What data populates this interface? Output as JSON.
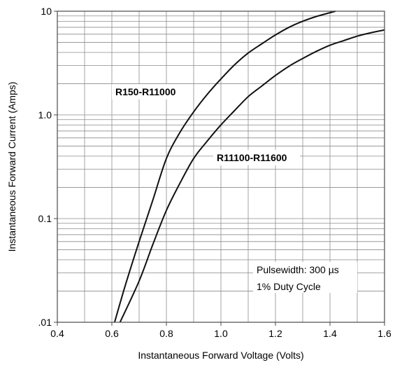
{
  "chart_data": {
    "type": "line",
    "xlabel": "Instantaneous Forward Voltage (Volts)",
    "ylabel": "Instantaneous Forward Current (Amps)",
    "xlim": [
      0.4,
      1.6
    ],
    "ylim": [
      0.01,
      10
    ],
    "yscale": "log",
    "grid": true,
    "x_ticks": [
      {
        "value": 0.4,
        "label": "0.4"
      },
      {
        "value": 0.6,
        "label": "0.6"
      },
      {
        "value": 0.8,
        "label": "0.8"
      },
      {
        "value": 1.0,
        "label": "1.0"
      },
      {
        "value": 1.2,
        "label": "1.2"
      },
      {
        "value": 1.4,
        "label": "1.4"
      },
      {
        "value": 1.6,
        "label": "1.6"
      }
    ],
    "y_ticks": [
      {
        "value": 0.01,
        "label": ".01"
      },
      {
        "value": 0.1,
        "label": "0.1"
      },
      {
        "value": 1.0,
        "label": "1.0"
      },
      {
        "value": 10,
        "label": "10"
      }
    ],
    "series": [
      {
        "name": "R150-R11000",
        "x": [
          0.61,
          0.65,
          0.7,
          0.75,
          0.8,
          0.85,
          0.9,
          0.95,
          1.0,
          1.05,
          1.1,
          1.15,
          1.2,
          1.25,
          1.3,
          1.35,
          1.42
        ],
        "y": [
          0.01,
          0.023,
          0.06,
          0.15,
          0.38,
          0.68,
          1.07,
          1.58,
          2.22,
          3.04,
          3.95,
          4.85,
          5.9,
          7.0,
          8.0,
          8.9,
          10.0
        ]
      },
      {
        "name": "R11100-R11600",
        "x": [
          0.63,
          0.7,
          0.75,
          0.8,
          0.85,
          0.9,
          0.95,
          1.0,
          1.05,
          1.1,
          1.15,
          1.2,
          1.25,
          1.3,
          1.35,
          1.4,
          1.45,
          1.5,
          1.55,
          1.6
        ],
        "y": [
          0.01,
          0.025,
          0.056,
          0.12,
          0.22,
          0.38,
          0.56,
          0.8,
          1.1,
          1.5,
          1.9,
          2.4,
          2.95,
          3.5,
          4.1,
          4.7,
          5.2,
          5.75,
          6.2,
          6.6
        ]
      }
    ],
    "annotations": [
      {
        "id": "pulse",
        "text": "Pulsewidth: 300 µs"
      },
      {
        "id": "duty",
        "text": "1% Duty Cycle"
      }
    ]
  }
}
